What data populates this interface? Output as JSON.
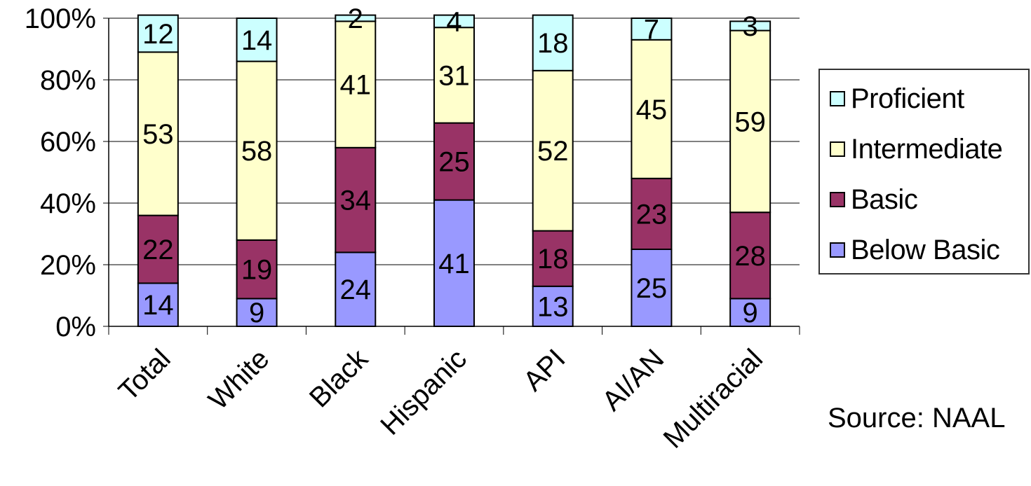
{
  "chart_data": {
    "type": "bar",
    "stacked": true,
    "categories": [
      "Total",
      "White",
      "Black",
      "Hispanic",
      "API",
      "AI/AN",
      "Multiracial"
    ],
    "series": [
      {
        "name": "Below Basic",
        "color": "#9999ff",
        "values": [
          14,
          9,
          24,
          41,
          13,
          25,
          9
        ]
      },
      {
        "name": "Basic",
        "color": "#993366",
        "values": [
          22,
          19,
          34,
          25,
          18,
          23,
          28
        ]
      },
      {
        "name": "Intermediate",
        "color": "#ffffcc",
        "values": [
          53,
          58,
          41,
          31,
          52,
          45,
          59
        ]
      },
      {
        "name": "Proficient",
        "color": "#ccffff",
        "values": [
          12,
          14,
          2,
          4,
          18,
          7,
          3
        ]
      }
    ],
    "yticks": [
      "0%",
      "20%",
      "40%",
      "60%",
      "80%",
      "100%"
    ],
    "ylim": [
      0,
      100
    ],
    "grid": true,
    "legend_position": "right",
    "note": "Source: NAAL"
  },
  "legend": {
    "items": [
      {
        "label": "Proficient",
        "color": "#ccffff"
      },
      {
        "label": "Intermediate",
        "color": "#ffffcc"
      },
      {
        "label": "Basic",
        "color": "#993366"
      },
      {
        "label": "Below Basic",
        "color": "#9999ff"
      }
    ]
  }
}
